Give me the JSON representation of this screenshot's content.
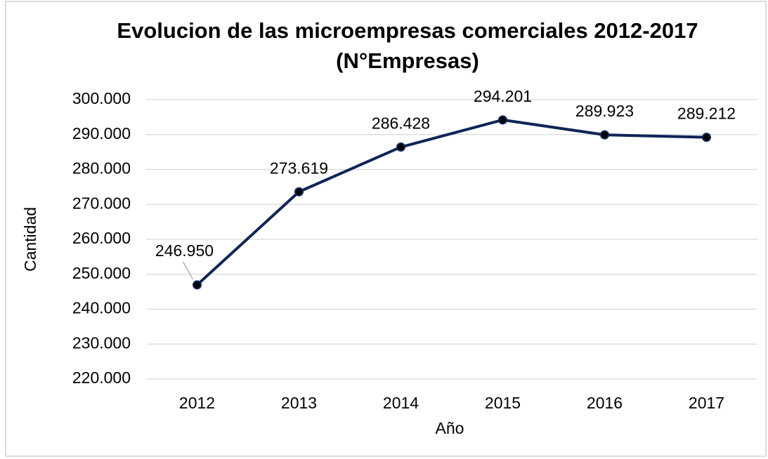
{
  "chart_data": {
    "type": "line",
    "title": "Evolucion de las microempresas comerciales  2012-2017 (N°Empresas)",
    "x_label": "Año",
    "y_label": "Cantidad",
    "categories": [
      "2012",
      "2013",
      "2014",
      "2015",
      "2016",
      "2017"
    ],
    "series": [
      {
        "name": "N°Empresas",
        "color": "#0e2557",
        "values": [
          246950,
          273619,
          286428,
          294201,
          289923,
          289212
        ],
        "value_labels": [
          "246.950",
          "273.619",
          "286.428",
          "294.201",
          "289.923",
          "289.212"
        ]
      }
    ],
    "ylim": [
      220000,
      300000
    ],
    "yticks": [
      {
        "value": 220000,
        "label": "220.000"
      },
      {
        "value": 230000,
        "label": "230.000"
      },
      {
        "value": 240000,
        "label": "240.000"
      },
      {
        "value": 250000,
        "label": "250.000"
      },
      {
        "value": 260000,
        "label": "260.000"
      },
      {
        "value": 270000,
        "label": "270.000"
      },
      {
        "value": 280000,
        "label": "280.000"
      },
      {
        "value": 290000,
        "label": "290.000"
      },
      {
        "value": 300000,
        "label": "300.000"
      }
    ],
    "grid": true
  }
}
